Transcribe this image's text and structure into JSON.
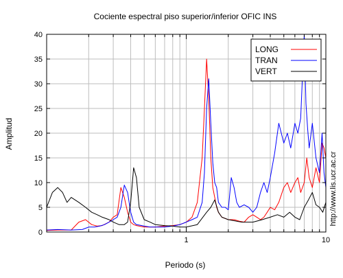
{
  "chart_data": {
    "type": "line",
    "title": "Cociente espectral piso superior/inferior  OFIC INS",
    "xlabel": "Periodo (s)",
    "ylabel": "Amplitud",
    "x_scale": "log",
    "xlim": [
      0.1,
      10
    ],
    "ylim": [
      0,
      40
    ],
    "x_ticks": [
      1,
      10
    ],
    "x_tick_labels": [
      "1",
      "10"
    ],
    "y_ticks": [
      0,
      5,
      10,
      15,
      20,
      25,
      30,
      35,
      40
    ],
    "y_tick_labels": [
      "0",
      "5",
      "10",
      "15",
      "20",
      "25",
      "30",
      "35",
      "40"
    ],
    "grid": true,
    "legend_position": "top-right",
    "side_label": "http://www.lis.ucr.ac.cr",
    "series": [
      {
        "name": "LONG",
        "color": "#ff0000",
        "x": [
          0.1,
          0.12,
          0.15,
          0.17,
          0.19,
          0.21,
          0.23,
          0.25,
          0.28,
          0.3,
          0.32,
          0.34,
          0.36,
          0.38,
          0.4,
          0.42,
          0.44,
          0.46,
          0.48,
          0.5,
          0.55,
          0.6,
          0.7,
          0.8,
          0.9,
          1.0,
          1.1,
          1.2,
          1.3,
          1.35,
          1.4,
          1.45,
          1.5,
          1.55,
          1.6,
          1.65,
          1.7,
          1.8,
          2.0,
          2.2,
          2.4,
          2.6,
          2.8,
          3.0,
          3.2,
          3.4,
          3.6,
          3.8,
          4.0,
          4.3,
          4.6,
          5.0,
          5.3,
          5.6,
          6.0,
          6.3,
          6.6,
          7.0,
          7.3,
          7.6,
          8.0,
          8.5,
          9.0,
          9.4,
          9.7,
          10.0
        ],
        "y": [
          0.3,
          0.4,
          0.4,
          2.0,
          2.5,
          1.5,
          1.2,
          1.3,
          2.0,
          3.0,
          3.5,
          9.0,
          7.0,
          4.0,
          2.0,
          1.5,
          1.3,
          1.2,
          1.1,
          1.0,
          1.0,
          1.0,
          1.2,
          1.3,
          1.5,
          2.0,
          3.0,
          6.0,
          15.0,
          25.0,
          35.0,
          27.0,
          15.0,
          9.0,
          7.0,
          5.0,
          4.0,
          3.0,
          2.5,
          2.5,
          2.2,
          2.0,
          3.0,
          3.5,
          3.0,
          2.5,
          3.0,
          4.0,
          5.0,
          4.5,
          6.0,
          9.0,
          10.0,
          8.0,
          10.0,
          11.0,
          8.0,
          10.0,
          15.0,
          11.0,
          9.0,
          13.0,
          10.0,
          18.0,
          17.0,
          15.0
        ]
      },
      {
        "name": "TRAN",
        "color": "#0000ff",
        "x": [
          0.1,
          0.12,
          0.15,
          0.18,
          0.2,
          0.22,
          0.24,
          0.26,
          0.28,
          0.3,
          0.32,
          0.34,
          0.36,
          0.38,
          0.4,
          0.42,
          0.44,
          0.46,
          0.48,
          0.5,
          0.55,
          0.6,
          0.7,
          0.8,
          0.9,
          1.0,
          1.1,
          1.2,
          1.3,
          1.35,
          1.4,
          1.45,
          1.5,
          1.55,
          1.6,
          1.65,
          1.7,
          1.8,
          1.9,
          2.0,
          2.1,
          2.2,
          2.3,
          2.4,
          2.6,
          2.8,
          3.0,
          3.2,
          3.4,
          3.6,
          3.8,
          4.0,
          4.3,
          4.6,
          5.0,
          5.3,
          5.6,
          6.0,
          6.3,
          6.6,
          7.0,
          7.2,
          7.4,
          7.6,
          8.0,
          8.5,
          9.0,
          9.4,
          9.7,
          10.0
        ],
        "y": [
          0.4,
          0.5,
          0.4,
          0.5,
          1.0,
          1.0,
          1.2,
          1.5,
          2.0,
          2.5,
          3.0,
          5.0,
          9.5,
          8.0,
          4.0,
          2.0,
          1.5,
          1.4,
          1.3,
          1.2,
          1.0,
          1.0,
          1.0,
          1.2,
          1.5,
          2.0,
          2.5,
          3.0,
          6.0,
          12.0,
          25.0,
          31.0,
          22.0,
          14.0,
          10.0,
          9.0,
          6.0,
          5.0,
          5.0,
          4.5,
          11.0,
          9.0,
          6.0,
          5.0,
          5.5,
          5.0,
          4.0,
          5.0,
          8.0,
          10.0,
          8.0,
          11.0,
          16.0,
          22.0,
          18.0,
          20.0,
          17.0,
          22.0,
          20.0,
          23.0,
          40.0,
          26.0,
          21.0,
          17.0,
          22.0,
          15.0,
          12.0,
          20.0,
          12.0,
          9.0
        ]
      },
      {
        "name": "VERT",
        "color": "#000000",
        "x": [
          0.1,
          0.11,
          0.12,
          0.13,
          0.14,
          0.15,
          0.17,
          0.19,
          0.21,
          0.23,
          0.25,
          0.28,
          0.3,
          0.33,
          0.36,
          0.38,
          0.4,
          0.42,
          0.44,
          0.46,
          0.5,
          0.55,
          0.6,
          0.7,
          0.8,
          0.9,
          1.0,
          1.2,
          1.4,
          1.5,
          1.6,
          1.7,
          1.8,
          2.0,
          2.5,
          3.0,
          3.5,
          4.0,
          4.5,
          5.0,
          5.5,
          6.0,
          6.5,
          7.0,
          7.5,
          8.0,
          8.5,
          9.0,
          9.5,
          10.0
        ],
        "y": [
          5.0,
          8.0,
          9.0,
          8.0,
          6.0,
          7.0,
          6.0,
          5.0,
          4.0,
          3.5,
          3.0,
          2.5,
          2.0,
          1.5,
          1.5,
          2.0,
          6.0,
          13.0,
          11.0,
          5.0,
          2.5,
          2.0,
          1.5,
          1.3,
          1.2,
          1.0,
          1.0,
          1.5,
          4.0,
          5.0,
          6.5,
          4.0,
          3.0,
          2.5,
          2.0,
          2.0,
          2.5,
          3.0,
          3.5,
          3.0,
          4.0,
          3.0,
          2.5,
          5.0,
          6.5,
          8.0,
          5.5,
          5.0,
          4.0,
          6.0
        ]
      }
    ]
  }
}
